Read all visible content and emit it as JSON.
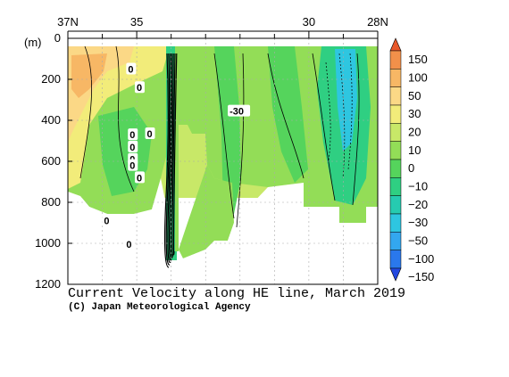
{
  "chart_data": {
    "type": "heatmap",
    "title": "Current Velocity along HE line, March 2019",
    "credit": "(C) Japan Meteorological Agency",
    "x_axis": {
      "range": [
        37,
        28
      ],
      "ticks": [
        {
          "value": 37,
          "label": "37N"
        },
        {
          "value": 35,
          "label": "35"
        },
        {
          "value": 30,
          "label": "30"
        },
        {
          "value": 28,
          "label": "28N"
        }
      ],
      "minor_ticks": [
        36,
        34,
        33,
        32,
        31,
        29
      ]
    },
    "y_axis": {
      "unit": "(m)",
      "range": [
        0,
        1200
      ],
      "inverted": true,
      "ticks": [
        0,
        200,
        400,
        600,
        800,
        1000,
        1200
      ]
    },
    "colorbar": {
      "levels": [
        150,
        100,
        50,
        30,
        20,
        10,
        0,
        -10,
        -20,
        -30,
        -50,
        -100,
        -150
      ],
      "colors": [
        "#e8582a",
        "#f2904a",
        "#f7b765",
        "#fbd886",
        "#f2ec7a",
        "#c8e868",
        "#93dd57",
        "#55d45c",
        "#2fcf82",
        "#26cbb0",
        "#2ec6e0",
        "#33a7ef",
        "#2a78ec",
        "#2248e0"
      ]
    },
    "contour_labels": [
      {
        "text": "0",
        "lat": 35.15,
        "depth": 150
      },
      {
        "text": "0",
        "lat": 34.9,
        "depth": 240
      },
      {
        "text": "0",
        "lat": 35.1,
        "depth": 470
      },
      {
        "text": "0",
        "lat": 35.1,
        "depth": 530
      },
      {
        "text": "0",
        "lat": 35.1,
        "depth": 590
      },
      {
        "text": "0",
        "lat": 34.6,
        "depth": 465
      },
      {
        "text": "0",
        "lat": 34.9,
        "depth": 680
      },
      {
        "text": "0",
        "lat": 35.1,
        "depth": 620
      },
      {
        "text": "0",
        "lat": 35.85,
        "depth": 890
      },
      {
        "text": "0",
        "lat": 35.2,
        "depth": 1005
      },
      {
        "text": "-30",
        "lat": 32.2,
        "depth": 355
      }
    ]
  }
}
